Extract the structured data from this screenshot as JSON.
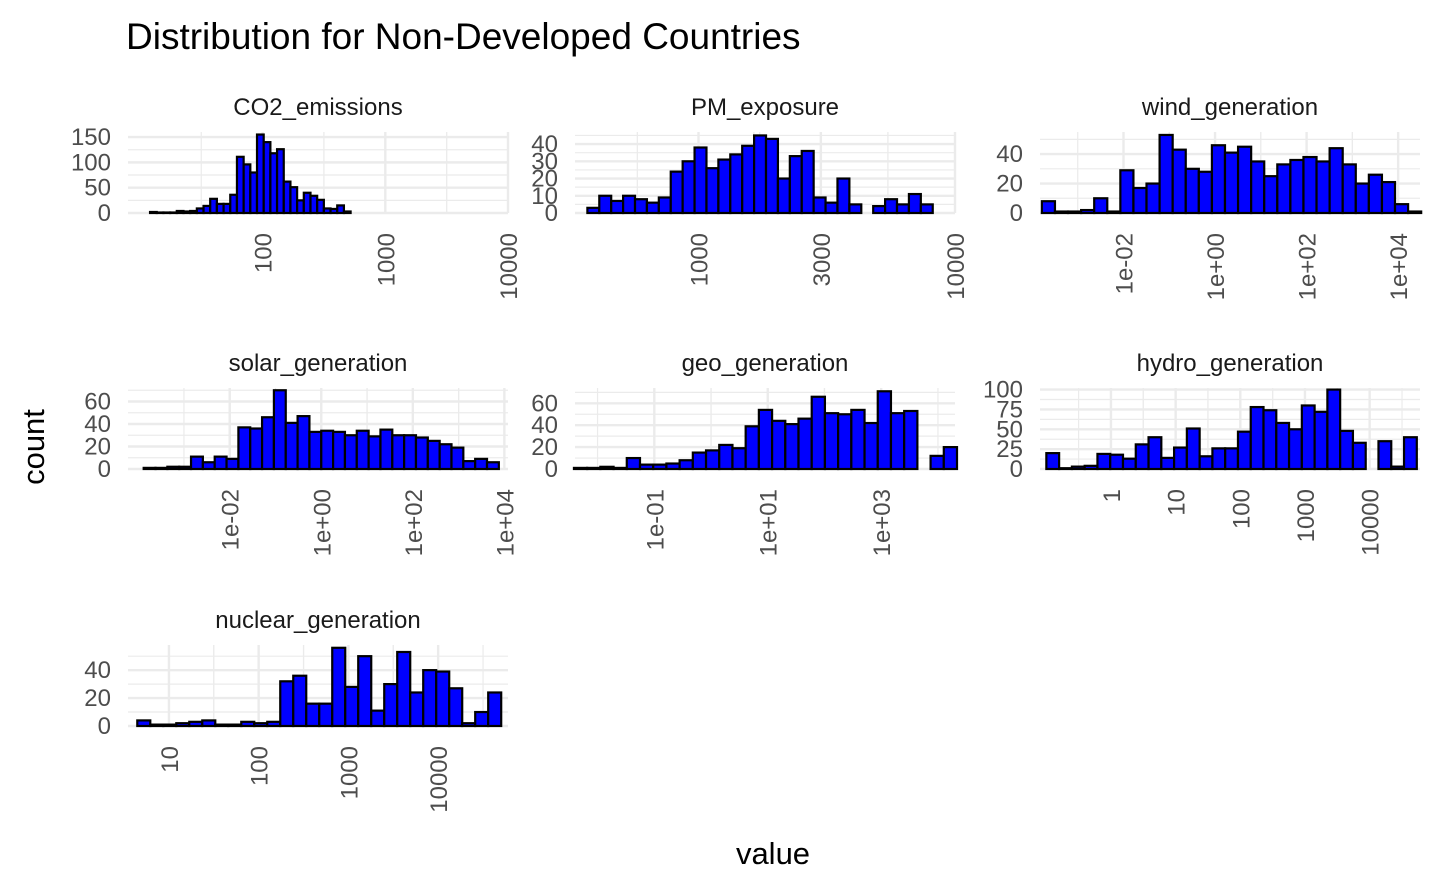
{
  "title": "Distribution for Non-Developed Countries",
  "xlabel": "value",
  "ylabel": "count",
  "colors": {
    "bar_fill": "#0000ff",
    "bar_stroke": "#000000",
    "grid": "#ebebeb",
    "text": "#000000",
    "tick_text": "#4d4d4d"
  },
  "chart_data": [
    {
      "type": "bar",
      "title": "CO2_emissions",
      "x_scale": "log10",
      "xlim": [
        8,
        10000
      ],
      "x_ticks": [
        100,
        1000,
        10000
      ],
      "x_tick_labels": [
        "100",
        "1000",
        "10000"
      ],
      "ylim": [
        0,
        160
      ],
      "y_ticks": [
        0,
        50,
        100,
        150
      ],
      "bins_log10": [
        1.11,
        2.69
      ],
      "counts": [
        2,
        1,
        1,
        1,
        4,
        3,
        4,
        9,
        14,
        28,
        18,
        18,
        36,
        111,
        96,
        80,
        155,
        140,
        118,
        126,
        62,
        51,
        25,
        40,
        34,
        26,
        9,
        8,
        15,
        3
      ]
    },
    {
      "type": "bar",
      "title": "PM_exposure",
      "x_scale": "log10",
      "xlim": [
        330,
        10000
      ],
      "x_ticks": [
        1000,
        3000,
        10000
      ],
      "x_tick_labels": [
        "1000",
        "3000",
        "10000"
      ],
      "ylim": [
        0,
        47
      ],
      "y_ticks": [
        0,
        10,
        20,
        30,
        40
      ],
      "bins_log10": [
        2.59,
        3.89
      ],
      "counts": [
        3,
        10,
        7,
        10,
        8,
        6,
        9,
        24,
        30,
        38,
        26,
        31,
        34,
        39,
        45,
        43,
        20,
        33,
        36,
        9,
        6,
        20,
        5,
        0,
        4,
        8,
        5,
        11,
        5
      ]
    },
    {
      "type": "bar",
      "title": "wind_generation",
      "x_scale": "log10",
      "xlim": [
        0.00015,
        30000
      ],
      "x_ticks": [
        0.01,
        1,
        100,
        10000
      ],
      "x_tick_labels": [
        "1e-02",
        "1e+00",
        "1e+02",
        "1e+04"
      ],
      "ylim": [
        0,
        55
      ],
      "y_ticks": [
        0,
        20,
        40
      ],
      "bins_log10": [
        -3.64,
        4.36
      ],
      "counts": [
        8,
        1,
        1,
        2,
        10,
        1,
        29,
        17,
        20,
        53,
        43,
        30,
        28,
        46,
        41,
        45,
        35,
        25,
        33,
        36,
        38,
        35,
        44,
        33,
        20,
        26,
        21,
        6,
        1
      ]
    },
    {
      "type": "bar",
      "title": "solar_generation",
      "x_scale": "log10",
      "xlim": [
        6e-05,
        12000
      ],
      "x_ticks": [
        0.01,
        1,
        100,
        10000
      ],
      "x_tick_labels": [
        "1e-02",
        "1e+00",
        "1e+02",
        "1e+04"
      ],
      "ylim": [
        0,
        72
      ],
      "y_ticks": [
        0,
        20,
        40,
        60
      ],
      "bins_log10": [
        -3.75,
        3.75
      ],
      "counts": [
        1,
        1,
        2,
        2,
        11,
        6,
        11,
        9,
        37,
        36,
        46,
        70,
        41,
        47,
        33,
        34,
        33,
        30,
        34,
        29,
        35,
        30,
        30,
        28,
        25,
        22,
        19,
        7,
        9,
        6
      ]
    },
    {
      "type": "bar",
      "title": "geo_generation",
      "x_scale": "log10",
      "xlim": [
        0.004,
        20000
      ],
      "x_ticks": [
        0.1,
        10,
        1000
      ],
      "x_tick_labels": [
        "1e-01",
        "1e+01",
        "1e+03"
      ],
      "ylim": [
        0,
        74
      ],
      "y_ticks": [
        0,
        20,
        40,
        60
      ],
      "bins_log10": [
        -2.3,
        4.22
      ],
      "counts": [
        1,
        1,
        2,
        1,
        10,
        4,
        4,
        5,
        8,
        15,
        17,
        22,
        19,
        39,
        54,
        44,
        41,
        46,
        66,
        51,
        50,
        54,
        42,
        71,
        51,
        53,
        0,
        12,
        20
      ]
    },
    {
      "type": "bar",
      "title": "hydro_generation",
      "x_scale": "log10",
      "xlim": [
        0.08,
        60000
      ],
      "x_ticks": [
        1,
        10,
        100,
        1000,
        10000
      ],
      "x_tick_labels": [
        "1",
        "10",
        "100",
        "1000",
        "10000"
      ],
      "ylim": [
        0,
        102
      ],
      "y_ticks": [
        0,
        25,
        50,
        75,
        100
      ],
      "bins_log10": [
        -0.9,
        4.63
      ],
      "counts": [
        20,
        1,
        3,
        4,
        19,
        18,
        13,
        31,
        40,
        14,
        27,
        51,
        16,
        26,
        26,
        47,
        78,
        74,
        58,
        50,
        80,
        72,
        100,
        48,
        33,
        0,
        35,
        3,
        40
      ]
    },
    {
      "type": "bar",
      "title": "nuclear_generation",
      "x_scale": "log10",
      "xlim": [
        3.5,
        60000
      ],
      "x_ticks": [
        10,
        100,
        1000,
        10000
      ],
      "x_tick_labels": [
        "10",
        "100",
        "1000",
        "10000"
      ],
      "ylim": [
        0,
        58
      ],
      "y_ticks": [
        0,
        20,
        40
      ],
      "bins_log10": [
        0.72,
        4.63
      ],
      "counts": [
        4,
        1,
        1,
        2,
        3,
        4,
        1,
        1,
        3,
        2,
        3,
        32,
        36,
        16,
        16,
        56,
        28,
        50,
        11,
        30,
        53,
        24,
        40,
        39,
        27,
        2,
        10,
        24
      ]
    }
  ]
}
